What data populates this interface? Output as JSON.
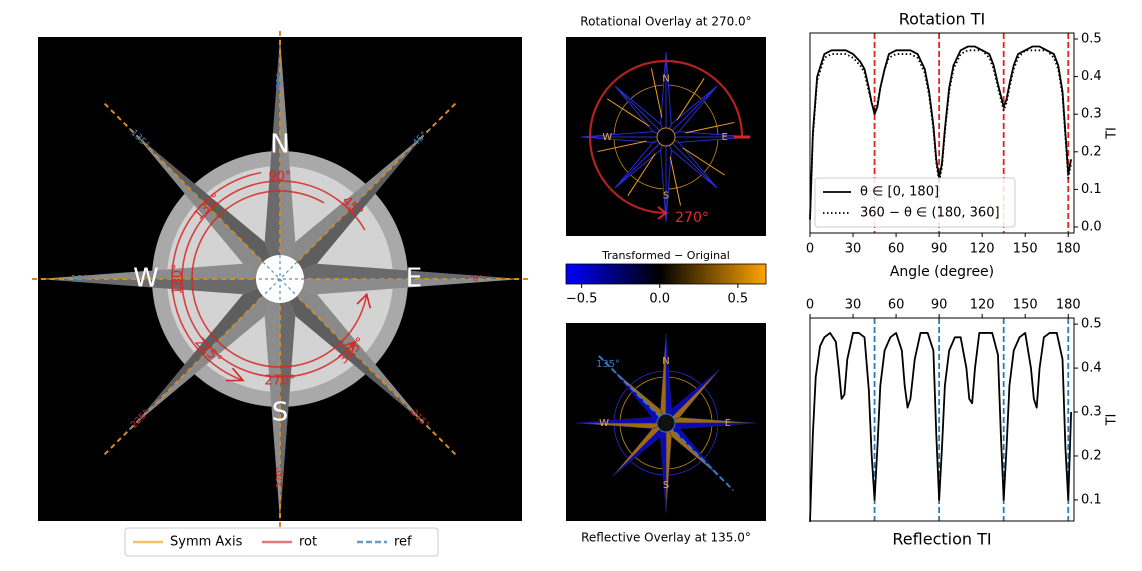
{
  "compass": {
    "cardinals": [
      "N",
      "E",
      "S",
      "W"
    ],
    "axis_labels": [
      "0°",
      "45°",
      "90°",
      "135°",
      "180°",
      "225°",
      "270°",
      "315°"
    ],
    "rot_labels": [
      "45°",
      "90°",
      "135°",
      "180°",
      "225°",
      "270°",
      "315°"
    ],
    "legend": [
      {
        "name": "Symm Axis",
        "color": "#f5c46a",
        "style": "solid"
      },
      {
        "name": "rot",
        "color": "#e07a7a",
        "style": "solid"
      },
      {
        "name": "ref",
        "color": "#6b9ac4",
        "style": "dashed"
      }
    ]
  },
  "overlays": [
    {
      "title": "Rotational Overlay at 270.0°",
      "angle_label": "270°"
    },
    {
      "title": "Reflective Overlay at 135.0°",
      "angle_label": "135°"
    }
  ],
  "colorbar": {
    "label": "Transformed − Original",
    "lim": [
      -0.6,
      0.68
    ],
    "ticks": [
      {
        "value": -0.5,
        "label": "−0.5"
      },
      {
        "value": 0,
        "label": "0.0"
      },
      0.5
    ]
  },
  "chart_data": [
    {
      "type": "line",
      "title": "Rotation TI",
      "xlabel": "Angle (degree)",
      "ylabel": "TI",
      "x": [
        0,
        2,
        5,
        10,
        15,
        20,
        25,
        30,
        35,
        38,
        41,
        43,
        45,
        47,
        49,
        52,
        55,
        60,
        65,
        70,
        75,
        80,
        83,
        86,
        88,
        90,
        92,
        94,
        97,
        100,
        105,
        110,
        115,
        120,
        125,
        128,
        131,
        133,
        135,
        137,
        139,
        142,
        145,
        150,
        155,
        160,
        165,
        170,
        173,
        176,
        178,
        180,
        182
      ],
      "series": [
        {
          "name": "θ ∈ [0, 180]",
          "color": "#000000",
          "style": "solid",
          "values": [
            0.02,
            0.25,
            0.4,
            0.46,
            0.47,
            0.47,
            0.47,
            0.46,
            0.44,
            0.42,
            0.37,
            0.33,
            0.3,
            0.32,
            0.37,
            0.42,
            0.46,
            0.47,
            0.47,
            0.47,
            0.46,
            0.42,
            0.36,
            0.27,
            0.18,
            0.13,
            0.17,
            0.26,
            0.37,
            0.43,
            0.47,
            0.48,
            0.48,
            0.47,
            0.46,
            0.43,
            0.38,
            0.35,
            0.32,
            0.34,
            0.38,
            0.43,
            0.46,
            0.47,
            0.48,
            0.48,
            0.47,
            0.46,
            0.43,
            0.36,
            0.25,
            0.14,
            0.18
          ]
        },
        {
          "name": "360 − θ ∈ (180, 360]",
          "color": "#000000",
          "style": "dotted",
          "values": [
            0.02,
            0.24,
            0.39,
            0.45,
            0.46,
            0.46,
            0.46,
            0.45,
            0.43,
            0.41,
            0.36,
            0.33,
            0.31,
            0.33,
            0.37,
            0.42,
            0.45,
            0.46,
            0.46,
            0.46,
            0.45,
            0.41,
            0.35,
            0.26,
            0.17,
            0.12,
            0.16,
            0.25,
            0.36,
            0.42,
            0.46,
            0.47,
            0.47,
            0.47,
            0.45,
            0.42,
            0.37,
            0.34,
            0.31,
            0.33,
            0.37,
            0.42,
            0.45,
            0.47,
            0.47,
            0.47,
            0.47,
            0.45,
            0.42,
            0.35,
            0.24,
            0.13,
            0.17
          ]
        }
      ],
      "reference_lines": [
        45,
        90,
        135,
        180
      ],
      "reference_color": "#e8211d",
      "xlim": [
        0,
        184
      ],
      "xticks": [
        0,
        30,
        60,
        90,
        120,
        150,
        180
      ],
      "ylim": [
        -0.016,
        0.516
      ],
      "yticks": [
        {
          "value": 0,
          "label": "0.0"
        },
        0.1,
        0.2,
        0.3,
        0.4,
        0.5
      ],
      "xaxis_side": "bottom",
      "yaxis_side": "right",
      "title_position": "top",
      "legend": "lower left"
    },
    {
      "type": "line",
      "title": "Reflection TI",
      "ylabel": "TI",
      "x": [
        0,
        2,
        4,
        7,
        10,
        14,
        18,
        20,
        22,
        24,
        26,
        30,
        34,
        38,
        41,
        43,
        45,
        47,
        49,
        52,
        56,
        60,
        64,
        66,
        68,
        70,
        73,
        77,
        82,
        86,
        88,
        90,
        92,
        94,
        97,
        101,
        105,
        109,
        111,
        113,
        115,
        118,
        122,
        127,
        131,
        133,
        135,
        137,
        139,
        142,
        146,
        150,
        154,
        156,
        158,
        160,
        163,
        167,
        172,
        176,
        178,
        180,
        182
      ],
      "series": [
        {
          "color": "#000000",
          "style": "solid",
          "values": [
            0.05,
            0.25,
            0.38,
            0.45,
            0.47,
            0.48,
            0.46,
            0.4,
            0.33,
            0.34,
            0.42,
            0.48,
            0.48,
            0.47,
            0.35,
            0.2,
            0.1,
            0.22,
            0.36,
            0.44,
            0.47,
            0.48,
            0.44,
            0.36,
            0.31,
            0.33,
            0.42,
            0.48,
            0.48,
            0.44,
            0.25,
            0.1,
            0.22,
            0.36,
            0.44,
            0.47,
            0.47,
            0.4,
            0.33,
            0.32,
            0.4,
            0.48,
            0.48,
            0.48,
            0.43,
            0.25,
            0.1,
            0.22,
            0.36,
            0.44,
            0.47,
            0.48,
            0.4,
            0.33,
            0.31,
            0.4,
            0.47,
            0.48,
            0.48,
            0.42,
            0.22,
            0.1,
            0.3
          ]
        }
      ],
      "reference_lines": [
        45,
        90,
        135,
        180
      ],
      "reference_color": "#2a7ab8",
      "xlim": [
        0,
        184
      ],
      "xticks": [
        0,
        30,
        60,
        90,
        120,
        150,
        180
      ],
      "ylim": [
        0.052,
        0.514
      ],
      "yticks": [
        0.1,
        0.2,
        0.3,
        0.4,
        0.5
      ],
      "xaxis_side": "top",
      "yaxis_side": "right",
      "title_position": "bottom"
    }
  ]
}
